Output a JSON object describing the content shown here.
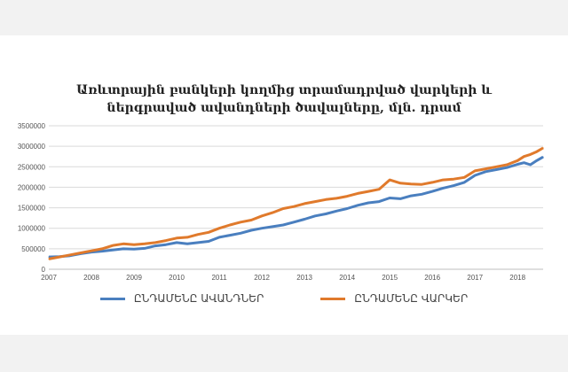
{
  "chart_data": {
    "type": "line",
    "title": "Առևտրային բանկերի կողմից տրամադրված վարկերի և ներգրաված ավանդների ծավալները, մլն. դրամ",
    "xlabel": "",
    "ylabel": "",
    "ylim": [
      0,
      3500000
    ],
    "yticks": [
      "0",
      "500000",
      "1000000",
      "1500000",
      "2000000",
      "2500000",
      "3000000",
      "3500000"
    ],
    "xlim": [
      2007.0,
      2018.6
    ],
    "xticks": [
      "2007",
      "2008",
      "2009",
      "2010",
      "2011",
      "2012",
      "2013",
      "2014",
      "2015",
      "2016",
      "2017",
      "2018"
    ],
    "grid": true,
    "legend_position": "bottom",
    "series": [
      {
        "name": "ԸՆԴԱՄԵՆԸ ԱՎԱՆԴՆԵՐ",
        "color": "#4a7fbf",
        "x": [
          2007.0,
          2007.25,
          2007.5,
          2007.75,
          2008.0,
          2008.25,
          2008.5,
          2008.75,
          2009.0,
          2009.25,
          2009.5,
          2009.75,
          2010.0,
          2010.25,
          2010.5,
          2010.75,
          2011.0,
          2011.25,
          2011.5,
          2011.75,
          2012.0,
          2012.25,
          2012.5,
          2012.75,
          2013.0,
          2013.25,
          2013.5,
          2013.75,
          2014.0,
          2014.25,
          2014.5,
          2014.75,
          2015.0,
          2015.25,
          2015.5,
          2015.75,
          2016.0,
          2016.25,
          2016.5,
          2016.75,
          2017.0,
          2017.25,
          2017.5,
          2017.75,
          2018.0,
          2018.15,
          2018.3,
          2018.45,
          2018.6
        ],
        "values": [
          300000,
          310000,
          330000,
          380000,
          420000,
          440000,
          470000,
          500000,
          490000,
          510000,
          570000,
          600000,
          650000,
          620000,
          650000,
          680000,
          780000,
          830000,
          880000,
          950000,
          1000000,
          1040000,
          1080000,
          1150000,
          1220000,
          1300000,
          1350000,
          1420000,
          1480000,
          1560000,
          1620000,
          1650000,
          1740000,
          1720000,
          1790000,
          1830000,
          1900000,
          1980000,
          2040000,
          2120000,
          2290000,
          2380000,
          2430000,
          2480000,
          2560000,
          2600000,
          2550000,
          2650000,
          2740000
        ]
      },
      {
        "name": "ԸՆԴԱՄԵՆԸ ՎԱՐԿԵՐ",
        "color": "#e07a2c",
        "x": [
          2007.0,
          2007.25,
          2007.5,
          2007.75,
          2008.0,
          2008.25,
          2008.5,
          2008.75,
          2009.0,
          2009.25,
          2009.5,
          2009.75,
          2010.0,
          2010.25,
          2010.5,
          2010.75,
          2011.0,
          2011.25,
          2011.5,
          2011.75,
          2012.0,
          2012.25,
          2012.5,
          2012.75,
          2013.0,
          2013.25,
          2013.5,
          2013.75,
          2014.0,
          2014.25,
          2014.5,
          2014.75,
          2015.0,
          2015.25,
          2015.5,
          2015.75,
          2016.0,
          2016.25,
          2016.5,
          2016.75,
          2017.0,
          2017.25,
          2017.5,
          2017.75,
          2018.0,
          2018.15,
          2018.3,
          2018.45,
          2018.6
        ],
        "values": [
          250000,
          300000,
          350000,
          400000,
          450000,
          500000,
          580000,
          620000,
          600000,
          620000,
          650000,
          700000,
          760000,
          780000,
          850000,
          900000,
          1000000,
          1080000,
          1150000,
          1200000,
          1300000,
          1380000,
          1480000,
          1530000,
          1600000,
          1650000,
          1700000,
          1730000,
          1780000,
          1850000,
          1900000,
          1950000,
          2180000,
          2100000,
          2080000,
          2070000,
          2120000,
          2180000,
          2200000,
          2240000,
          2400000,
          2450000,
          2500000,
          2550000,
          2650000,
          2750000,
          2800000,
          2870000,
          2960000
        ]
      }
    ]
  }
}
